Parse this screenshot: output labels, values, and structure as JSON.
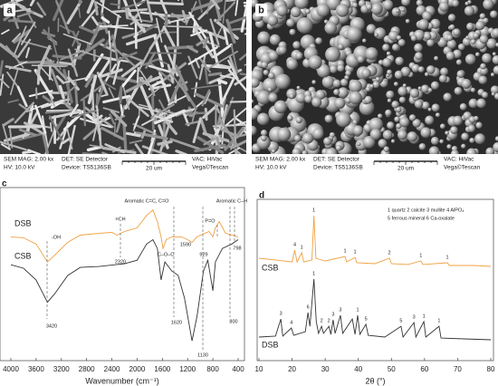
{
  "sem_panels": [
    {
      "label": "a",
      "mag": "SEM MAG: 2.00 kx",
      "hv": "HV: 10.0 kV",
      "det": "DET: SE Detector",
      "device": "Device: TS5136SB",
      "scale": "20 um",
      "vac": "VAC: HiVac",
      "brand": "Vega©Tescan"
    },
    {
      "label": "b",
      "mag": "SEM MAG: 2.00 kx",
      "hv": "HV: 10.0 kV",
      "det": "DET: SE Detector",
      "device": "Device: TS5136SB",
      "scale": "20 um",
      "vac": "VAC: HiVac",
      "brand": "Vega©Tescan"
    }
  ],
  "chart_data": [
    {
      "type": "line",
      "panel_label": "c",
      "x_label": "Wavenumber (cm⁻¹)",
      "xlim": [
        4000,
        400
      ],
      "xticks": [
        4000,
        3600,
        3200,
        2800,
        2400,
        2000,
        1600,
        1200,
        800,
        400
      ],
      "ylim": [
        0,
        100
      ],
      "series": [
        {
          "name": "DSB",
          "color": "#f0a040",
          "x": [
            4000,
            3800,
            3600,
            3420,
            3300,
            3100,
            2900,
            2600,
            2400,
            2320,
            2200,
            2000,
            1850,
            1750,
            1680,
            1620,
            1590,
            1540,
            1450,
            1300,
            1200,
            1130,
            1050,
            929,
            860,
            800,
            760,
            700,
            600,
            400
          ],
          "values": [
            71.5,
            71,
            67.4,
            57,
            61.1,
            68.4,
            72.5,
            73.6,
            74.1,
            72.5,
            74.6,
            76.7,
            83.9,
            87,
            80.3,
            71.5,
            64.8,
            69.9,
            71.5,
            71.5,
            69.9,
            68.4,
            71.5,
            73.6,
            74.6,
            71.5,
            76.7,
            80.3,
            73.6,
            71.5
          ]
        },
        {
          "name": "CSB",
          "color": "#333333",
          "x": [
            4000,
            3800,
            3600,
            3420,
            3300,
            3100,
            2900,
            2600,
            2200,
            2000,
            1850,
            1750,
            1680,
            1620,
            1560,
            1450,
            1350,
            1250,
            1130,
            1050,
            950,
            880,
            800,
            760,
            650,
            500,
            400
          ],
          "values": [
            55.4,
            53.4,
            46.6,
            33.7,
            38.9,
            49.2,
            53.9,
            54.4,
            56,
            58,
            67.4,
            69.9,
            64.8,
            46.6,
            57,
            51.8,
            49.2,
            36.3,
            11.4,
            25.9,
            51.8,
            58,
            40.4,
            57,
            64.8,
            67.4,
            69.9
          ]
        }
      ],
      "annotations": [
        "-OH",
        "≡CH",
        "2320",
        "Aromatic C=C, C=O",
        "1590",
        "C–O–C",
        "P=O",
        "929",
        "Aromatic C–H",
        "798",
        "3420",
        "1620",
        "1130",
        "800"
      ]
    },
    {
      "type": "line",
      "panel_label": "d",
      "x_label": "2θ (°)",
      "xlim": [
        10,
        80
      ],
      "xticks": [
        10,
        20,
        30,
        40,
        50,
        60,
        70,
        80
      ],
      "ylim": [
        0,
        100
      ],
      "legend_text": [
        "1 quartz  2 calcite  3 mullite  4 AlPO₄",
        "5 ferrous mineral  6 Ca-oxalate"
      ],
      "series": [
        {
          "name": "CSB",
          "color": "#f0a040",
          "x": [
            10,
            15,
            20,
            20.8,
            21.5,
            22.9,
            23.5,
            26,
            26.6,
            27.2,
            28,
            30,
            36,
            36.5,
            39,
            39.5,
            45,
            49.4,
            50,
            55,
            58.9,
            59.5,
            66.9,
            67.5,
            75,
            80
          ],
          "values": [
            63.5,
            62.4,
            61.2,
            68.5,
            61.2,
            66.9,
            61.2,
            62.4,
            89.9,
            63.5,
            62.9,
            61.8,
            64.6,
            61.2,
            64,
            60.7,
            60.1,
            63.5,
            60.1,
            59.6,
            61.8,
            59.6,
            60.7,
            59,
            59,
            58.4
          ],
          "peaks": [
            {
              "x": 20.8,
              "label": "4"
            },
            {
              "x": 22.9,
              "label": "1"
            },
            {
              "x": 26.6,
              "label": "1"
            },
            {
              "x": 36,
              "label": "1"
            },
            {
              "x": 39,
              "label": "1"
            },
            {
              "x": 49.4,
              "label": "2"
            },
            {
              "x": 58.9,
              "label": "1"
            },
            {
              "x": 66.9,
              "label": "1"
            }
          ]
        },
        {
          "name": "DSB",
          "color": "#333333",
          "x": [
            10,
            15,
            16.6,
            17.2,
            19.8,
            20.5,
            24,
            24.8,
            25.4,
            26.6,
            27.3,
            28,
            28.9,
            29.5,
            31.1,
            31.7,
            32.4,
            33,
            34.6,
            35.3,
            38.2,
            39,
            39.8,
            40.5,
            42.3,
            43,
            48,
            52.9,
            53.5,
            56.8,
            57.4,
            59.8,
            60.4,
            64.4,
            65,
            72,
            80
          ],
          "values": [
            14.6,
            15.2,
            25.8,
            15.2,
            20.2,
            15.7,
            18,
            29.8,
            21.3,
            50.6,
            24.2,
            16.9,
            21.3,
            16.9,
            21.3,
            16.3,
            25.3,
            16.9,
            28.1,
            16.9,
            25.8,
            16.3,
            28.1,
            16.3,
            22.5,
            15.7,
            14.6,
            21.3,
            14.6,
            23.6,
            14.6,
            24.2,
            14.6,
            21.3,
            14,
            13.5,
            12.9
          ],
          "peaks": [
            {
              "x": 16.6,
              "label": "3"
            },
            {
              "x": 19.8,
              "label": "4"
            },
            {
              "x": 24.8,
              "label": "6"
            },
            {
              "x": 26.6,
              "label": "1"
            },
            {
              "x": 28.9,
              "label": "2"
            },
            {
              "x": 31.1,
              "label": "2"
            },
            {
              "x": 32.4,
              "label": "3"
            },
            {
              "x": 34.6,
              "label": "3"
            },
            {
              "x": 39.8,
              "label": "1"
            },
            {
              "x": 42.3,
              "label": "5"
            },
            {
              "x": 52.9,
              "label": "5"
            },
            {
              "x": 56.8,
              "label": "3"
            },
            {
              "x": 59.8,
              "label": "1"
            },
            {
              "x": 64.4,
              "label": "1"
            }
          ]
        }
      ]
    }
  ]
}
